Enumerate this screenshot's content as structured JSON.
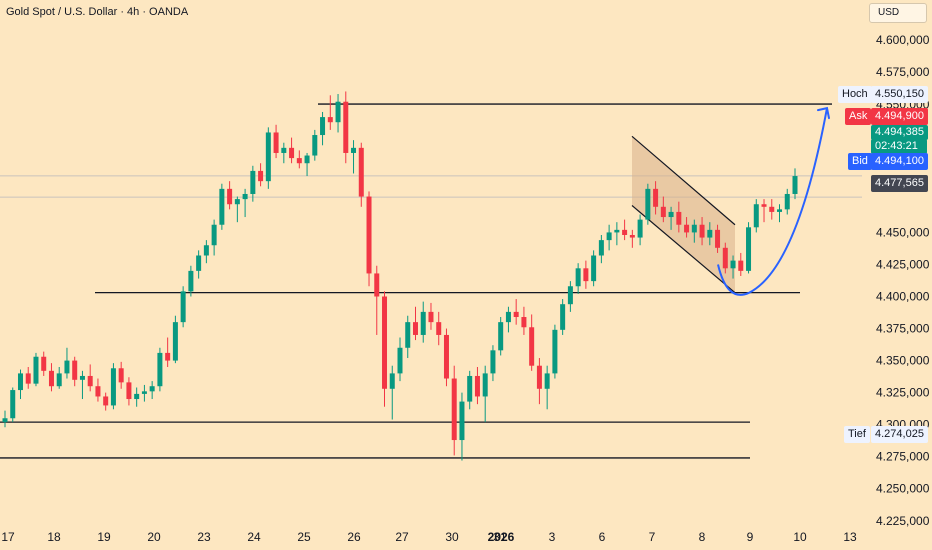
{
  "header": {
    "title": "Gold Spot / U.S. Dollar · 4h · OANDA",
    "currency": "USD"
  },
  "colors": {
    "background": "#fde7c1",
    "up": "#089981",
    "down": "#f23645",
    "line": "#131722",
    "curve": "#2962ff",
    "channel_fill": "#d9b08a"
  },
  "chart_data": {
    "type": "candlestick",
    "title": "Gold Spot / U.S. Dollar · 4h · OANDA",
    "ylim": [
      4210,
      4622
    ],
    "y_ticks": [
      4600,
      4575,
      4550,
      4525,
      4500,
      4475,
      4450,
      4425,
      4400,
      4375,
      4350,
      4325,
      4300,
      4275,
      4250,
      4225
    ],
    "y_tick_labels": [
      "4.600,000",
      "4.575,000",
      "4.550,000",
      "4.525,000",
      "4.500,000",
      "4.475,000",
      "4.450,000",
      "4.425,000",
      "4.400,000",
      "4.375,000",
      "4.350,000",
      "4.325,000",
      "4.300,000",
      "4.275,000",
      "4.250,000",
      "4.225,000"
    ],
    "x_labels": [
      "17",
      "18",
      "19",
      "20",
      "23",
      "24",
      "25",
      "26",
      "27",
      "30",
      "31",
      "2026",
      "3",
      "6",
      "7",
      "8",
      "9",
      "10",
      "13"
    ],
    "candles": [
      [
        4302,
        4311,
        4298,
        4305
      ],
      [
        4305,
        4329,
        4302,
        4327
      ],
      [
        4327,
        4343,
        4320,
        4340
      ],
      [
        4340,
        4345,
        4328,
        4332
      ],
      [
        4332,
        4356,
        4330,
        4353
      ],
      [
        4353,
        4357,
        4338,
        4342
      ],
      [
        4342,
        4348,
        4326,
        4330
      ],
      [
        4330,
        4345,
        4328,
        4340
      ],
      [
        4340,
        4360,
        4336,
        4350
      ],
      [
        4350,
        4353,
        4330,
        4335
      ],
      [
        4335,
        4342,
        4320,
        4338
      ],
      [
        4338,
        4347,
        4326,
        4330
      ],
      [
        4330,
        4336,
        4318,
        4322
      ],
      [
        4322,
        4325,
        4311,
        4315
      ],
      [
        4315,
        4348,
        4312,
        4344
      ],
      [
        4344,
        4349,
        4328,
        4333
      ],
      [
        4333,
        4337,
        4315,
        4320
      ],
      [
        4320,
        4329,
        4314,
        4324
      ],
      [
        4324,
        4331,
        4318,
        4326
      ],
      [
        4326,
        4334,
        4320,
        4330
      ],
      [
        4330,
        4360,
        4326,
        4356
      ],
      [
        4356,
        4368,
        4345,
        4350
      ],
      [
        4350,
        4385,
        4348,
        4380
      ],
      [
        4380,
        4408,
        4376,
        4404
      ],
      [
        4404,
        4424,
        4400,
        4420
      ],
      [
        4420,
        4436,
        4414,
        4432
      ],
      [
        4432,
        4444,
        4426,
        4440
      ],
      [
        4440,
        4460,
        4432,
        4456
      ],
      [
        4456,
        4488,
        4452,
        4484
      ],
      [
        4484,
        4490,
        4468,
        4472
      ],
      [
        4472,
        4478,
        4458,
        4476
      ],
      [
        4476,
        4484,
        4462,
        4480
      ],
      [
        4480,
        4502,
        4474,
        4498
      ],
      [
        4498,
        4504,
        4486,
        4490
      ],
      [
        4490,
        4532,
        4484,
        4528
      ],
      [
        4528,
        4534,
        4508,
        4512
      ],
      [
        4512,
        4520,
        4504,
        4516
      ],
      [
        4516,
        4524,
        4504,
        4508
      ],
      [
        4508,
        4514,
        4500,
        4504
      ],
      [
        4504,
        4512,
        4494,
        4510
      ],
      [
        4510,
        4530,
        4506,
        4526
      ],
      [
        4526,
        4544,
        4518,
        4540
      ],
      [
        4540,
        4557,
        4530,
        4536
      ],
      [
        4536,
        4558,
        4528,
        4552
      ],
      [
        4552,
        4560,
        4504,
        4512
      ],
      [
        4512,
        4522,
        4496,
        4516
      ],
      [
        4516,
        4520,
        4470,
        4478
      ],
      [
        4478,
        4482,
        4408,
        4418
      ],
      [
        4418,
        4424,
        4370,
        4400
      ],
      [
        4400,
        4404,
        4314,
        4328
      ],
      [
        4328,
        4346,
        4304,
        4340
      ],
      [
        4340,
        4368,
        4334,
        4360
      ],
      [
        4360,
        4385,
        4352,
        4380
      ],
      [
        4380,
        4392,
        4366,
        4370
      ],
      [
        4370,
        4396,
        4364,
        4388
      ],
      [
        4388,
        4395,
        4374,
        4380
      ],
      [
        4380,
        4388,
        4362,
        4370
      ],
      [
        4370,
        4375,
        4330,
        4336
      ],
      [
        4336,
        4346,
        4276,
        4288
      ],
      [
        4288,
        4325,
        4272,
        4318
      ],
      [
        4318,
        4342,
        4312,
        4338
      ],
      [
        4338,
        4345,
        4316,
        4322
      ],
      [
        4322,
        4346,
        4302,
        4340
      ],
      [
        4340,
        4362,
        4334,
        4358
      ],
      [
        4358,
        4384,
        4354,
        4380
      ],
      [
        4380,
        4392,
        4372,
        4388
      ],
      [
        4388,
        4398,
        4378,
        4384
      ],
      [
        4384,
        4392,
        4370,
        4376
      ],
      [
        4376,
        4386,
        4342,
        4346
      ],
      [
        4346,
        4352,
        4316,
        4328
      ],
      [
        4328,
        4346,
        4312,
        4340
      ],
      [
        4340,
        4378,
        4336,
        4374
      ],
      [
        4374,
        4398,
        4370,
        4394
      ],
      [
        4394,
        4412,
        4388,
        4408
      ],
      [
        4408,
        4426,
        4402,
        4422
      ],
      [
        4422,
        4428,
        4406,
        4412
      ],
      [
        4412,
        4436,
        4408,
        4432
      ],
      [
        4432,
        4448,
        4426,
        4444
      ],
      [
        4444,
        4456,
        4436,
        4450
      ],
      [
        4450,
        4458,
        4440,
        4452
      ],
      [
        4452,
        4460,
        4444,
        4448
      ],
      [
        4448,
        4452,
        4438,
        4446
      ],
      [
        4446,
        4464,
        4440,
        4460
      ],
      [
        4460,
        4488,
        4456,
        4484
      ],
      [
        4484,
        4490,
        4464,
        4470
      ],
      [
        4470,
        4478,
        4458,
        4462
      ],
      [
        4462,
        4470,
        4452,
        4466
      ],
      [
        4466,
        4474,
        4450,
        4456
      ],
      [
        4456,
        4462,
        4446,
        4450
      ],
      [
        4450,
        4460,
        4442,
        4456
      ],
      [
        4456,
        4462,
        4440,
        4446
      ],
      [
        4446,
        4458,
        4440,
        4452
      ],
      [
        4452,
        4456,
        4434,
        4438
      ],
      [
        4438,
        4442,
        4418,
        4422
      ],
      [
        4422,
        4432,
        4414,
        4428
      ],
      [
        4428,
        4434,
        4416,
        4420
      ],
      [
        4420,
        4458,
        4418,
        4454
      ],
      [
        4454,
        4476,
        4450,
        4472
      ],
      [
        4472,
        4476,
        4458,
        4470
      ],
      [
        4470,
        4476,
        4460,
        4466
      ],
      [
        4466,
        4472,
        4458,
        4468
      ],
      [
        4468,
        4484,
        4464,
        4480
      ],
      [
        4480,
        4500,
        4476,
        4494
      ]
    ],
    "lines": [
      {
        "name": "Hoch",
        "value": 4550.15,
        "label": "4.550,150"
      },
      {
        "name": "Tief",
        "value": 4274.025,
        "label": "4.274,025"
      },
      {
        "name": "support-1",
        "value": 4403
      },
      {
        "name": "support-2",
        "value": 4302
      }
    ],
    "quotes": {
      "ask": {
        "label": "Ask",
        "value": "4.494,900"
      },
      "last": {
        "value": "4.494,385",
        "countdown": "02:43:21"
      },
      "bid": {
        "label": "Bid",
        "value": "4.494,100"
      },
      "prev": {
        "value": "4.477,565"
      }
    }
  }
}
